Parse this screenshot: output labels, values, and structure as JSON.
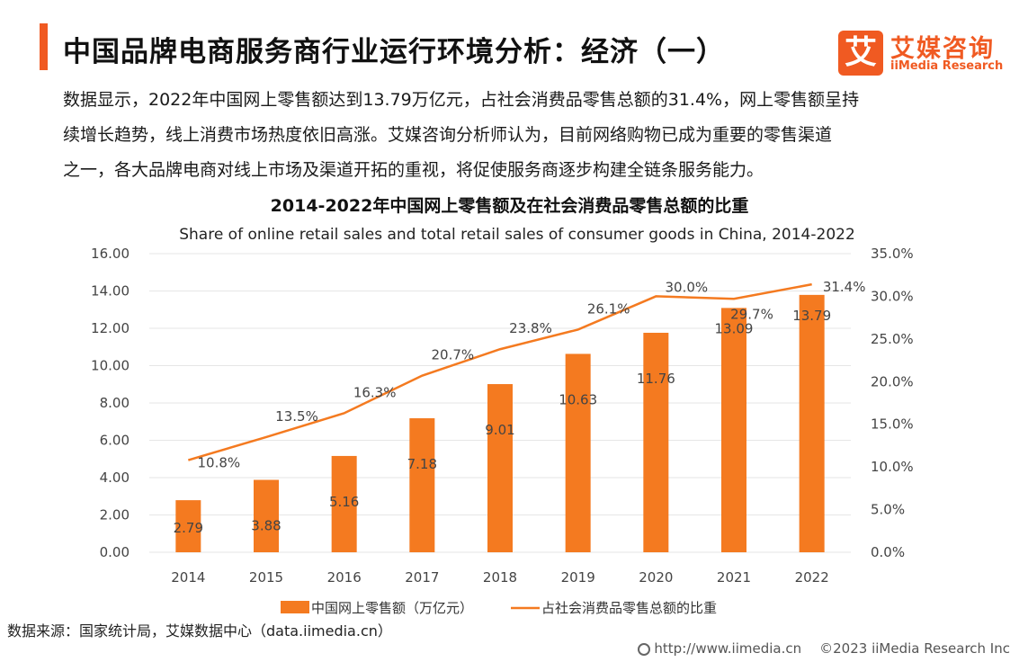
{
  "header": {
    "title": "中国品牌电商服务商行业运行环境分析：经济（一）",
    "logo_icon": "艾",
    "logo_cn": "艾媒咨询",
    "logo_en": "iiMedia Research"
  },
  "paragraph": [
    "数据显示，2022年中国网上零售额达到13.79万亿元，占社会消费品零售总额的31.4%，网上零售额呈持",
    "续增长趋势，线上消费市场热度依旧高涨。艾媒咨询分析师认为，目前网络购物已成为重要的零售渠道",
    "之一，各大品牌电商对线上市场及渠道开拓的重视，将促使服务商逐步构建全链条服务能力。"
  ],
  "chart_data": {
    "type": "bar",
    "title": "2014-2022年中国网上零售额及在社会消费品零售总额的比重",
    "subtitle": "Share of online retail sales and total retail sales of consumer goods in China, 2014-2022",
    "categories": [
      "2014",
      "2015",
      "2016",
      "2017",
      "2018",
      "2019",
      "2020",
      "2021",
      "2022"
    ],
    "series": [
      {
        "name": "中国网上零售额（万亿元）",
        "type": "bar",
        "axis": "left",
        "values": [
          2.79,
          3.88,
          5.16,
          7.18,
          9.01,
          10.63,
          11.76,
          13.09,
          13.79
        ],
        "labels": [
          "2.79",
          "3.88",
          "5.16",
          "7.18",
          "9.01",
          "10.63",
          "11.76",
          "13.09",
          "13.79"
        ],
        "color": "#f47a20"
      },
      {
        "name": "占社会消费品零售总额的比重",
        "type": "line",
        "axis": "right",
        "values": [
          10.8,
          13.5,
          16.3,
          20.7,
          23.8,
          26.1,
          30.0,
          29.7,
          31.4
        ],
        "labels": [
          "10.8%",
          "13.5%",
          "16.3%",
          "20.7%",
          "23.8%",
          "26.1%",
          "30.0%",
          "29.7%",
          "31.4%"
        ],
        "color": "#f47a20"
      }
    ],
    "left_axis": {
      "ylim": [
        0,
        16
      ],
      "ticks": [
        "0.00",
        "2.00",
        "4.00",
        "6.00",
        "8.00",
        "10.00",
        "12.00",
        "14.00",
        "16.00"
      ]
    },
    "right_axis": {
      "ylim": [
        0,
        35
      ],
      "ticks": [
        "0.0%",
        "5.0%",
        "10.0%",
        "15.0%",
        "20.0%",
        "25.0%",
        "30.0%",
        "35.0%"
      ]
    },
    "grid": true,
    "legend_position": "bottom"
  },
  "source": "数据来源：国家统计局，艾媒数据中心（data.iimedia.cn）",
  "footer": {
    "url": "http://www.iimedia.cn",
    "copyright": "©2023  iiMedia Research  Inc"
  },
  "colors": {
    "accent": "#f05a22",
    "bar": "#f47a20",
    "grid": "#e6e6e6"
  }
}
